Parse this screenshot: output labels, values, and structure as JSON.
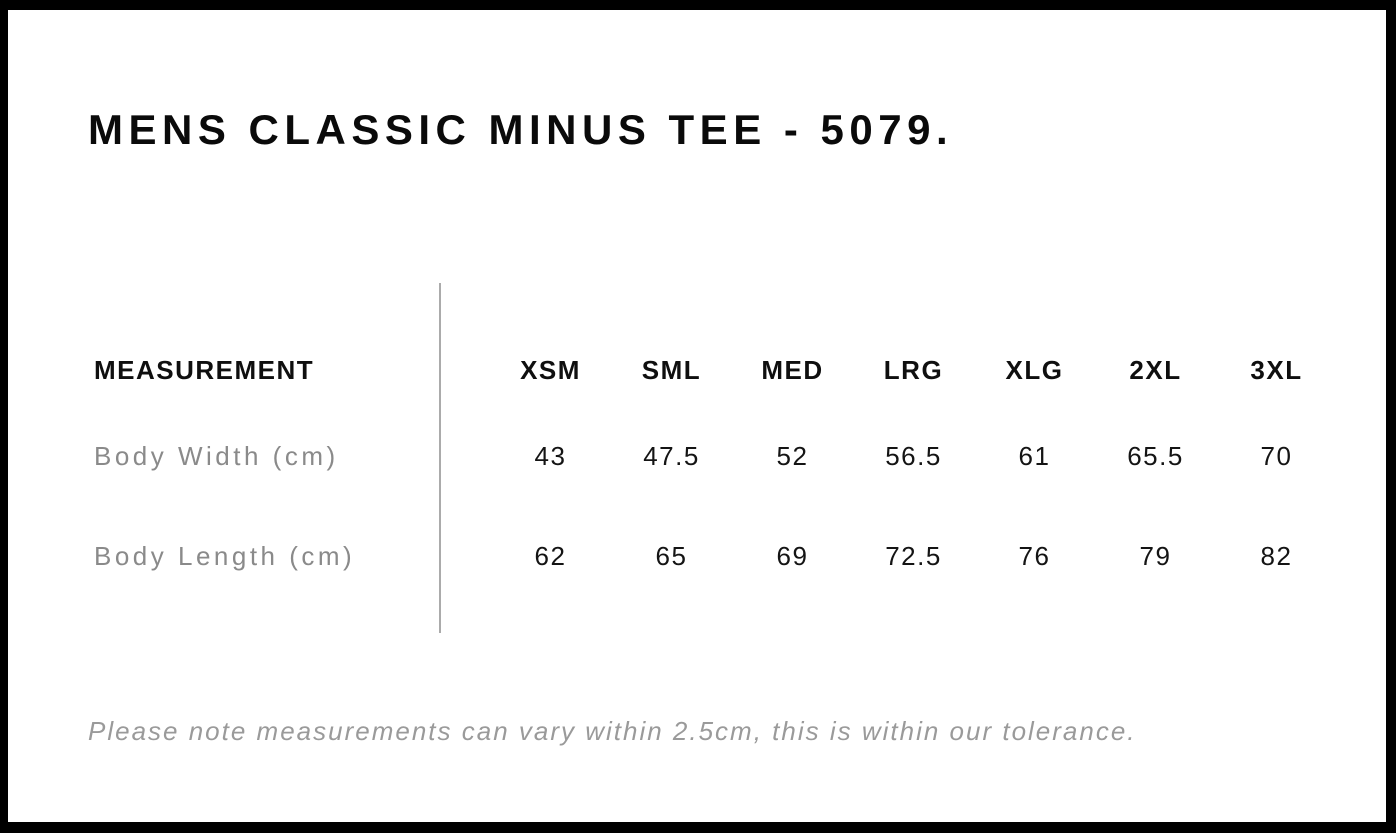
{
  "page": {
    "title": "MENS CLASSIC MINUS TEE - 5079.",
    "note": "Please note measurements can vary within 2.5cm, this is within our tolerance."
  },
  "size_chart": {
    "measurement_label": "MEASUREMENT",
    "sizes": [
      "XSM",
      "SML",
      "MED",
      "LRG",
      "XLG",
      "2XL",
      "3XL"
    ],
    "rows": [
      {
        "label": "Body Width (cm)",
        "values": [
          "43",
          "47.5",
          "52",
          "56.5",
          "61",
          "65.5",
          "70"
        ]
      },
      {
        "label": "Body Length (cm)",
        "values": [
          "62",
          "65",
          "69",
          "72.5",
          "76",
          "79",
          "82"
        ]
      }
    ]
  },
  "chart_data": {
    "type": "table",
    "title": "MENS CLASSIC MINUS TEE - 5079.",
    "columns": [
      "MEASUREMENT",
      "XSM",
      "SML",
      "MED",
      "LRG",
      "XLG",
      "2XL",
      "3XL"
    ],
    "rows": [
      [
        "Body Width (cm)",
        43,
        47.5,
        52,
        56.5,
        61,
        65.5,
        70
      ],
      [
        "Body Length (cm)",
        62,
        65,
        69,
        72.5,
        76,
        79,
        82
      ]
    ],
    "footnote": "Please note measurements can vary within 2.5cm, this is within our tolerance."
  },
  "colors": {
    "frame_border": "#000000",
    "title_text": "#0a0a0a",
    "header_text": "#0f0f0f",
    "value_text": "#141414",
    "row_label_text": "#8a8a8a",
    "note_text": "#9a9a9a",
    "divider": "#ababab",
    "background": "#ffffff"
  }
}
